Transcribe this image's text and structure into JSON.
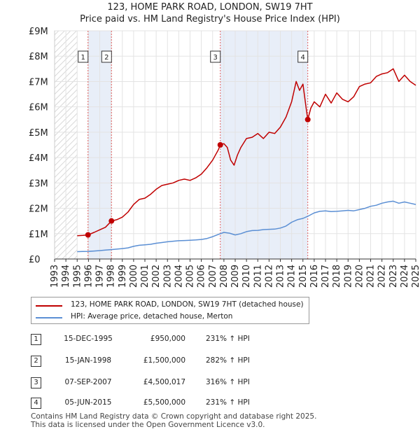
{
  "title": "123, HOME PARK ROAD, LONDON, SW19 7HT",
  "subtitle": "Price paid vs. HM Land Registry's House Price Index (HPI)",
  "colors": {
    "property": "#c00000",
    "hpi": "#5b8fd4",
    "shade": "#e8eef8",
    "hatch": "#cccccc",
    "marker_line": "#e06060"
  },
  "legend": [
    {
      "label": "123, HOME PARK ROAD, LONDON, SW19 7HT (detached house)",
      "color": "#c00000"
    },
    {
      "label": "HPI: Average price, detached house, Merton",
      "color": "#5b8fd4"
    }
  ],
  "transactions": [
    {
      "num": "1",
      "date": "15-DEC-1995",
      "price": "£950,000",
      "hpi": "231% ↑ HPI"
    },
    {
      "num": "2",
      "date": "15-JAN-1998",
      "price": "£1,500,000",
      "hpi": "282% ↑ HPI"
    },
    {
      "num": "3",
      "date": "07-SEP-2007",
      "price": "£4,500,017",
      "hpi": "316% ↑ HPI"
    },
    {
      "num": "4",
      "date": "05-JUN-2015",
      "price": "£5,500,000",
      "hpi": "231% ↑ HPI"
    }
  ],
  "footer": [
    "Contains HM Land Registry data © Crown copyright and database right 2025.",
    "This data is licensed under the Open Government Licence v3.0."
  ],
  "chart_data": {
    "type": "line",
    "xlim": [
      1993,
      2025
    ],
    "ylim": [
      0,
      9000000
    ],
    "x_ticks": [
      "1993",
      "1994",
      "1995",
      "1996",
      "1997",
      "1998",
      "1999",
      "2000",
      "2001",
      "2002",
      "2003",
      "2004",
      "2005",
      "2006",
      "2007",
      "2008",
      "2009",
      "2010",
      "2011",
      "2012",
      "2013",
      "2014",
      "2015",
      "2016",
      "2017",
      "2018",
      "2019",
      "2020",
      "2021",
      "2022",
      "2023",
      "2024",
      "2025"
    ],
    "y_ticks": [
      {
        "value": 0,
        "label": "£0"
      },
      {
        "value": 1000000,
        "label": "£1M"
      },
      {
        "value": 2000000,
        "label": "£2M"
      },
      {
        "value": 3000000,
        "label": "£3M"
      },
      {
        "value": 4000000,
        "label": "£4M"
      },
      {
        "value": 5000000,
        "label": "£5M"
      },
      {
        "value": 6000000,
        "label": "£6M"
      },
      {
        "value": 7000000,
        "label": "£7M"
      },
      {
        "value": 8000000,
        "label": "£8M"
      },
      {
        "value": 9000000,
        "label": "£9M"
      }
    ],
    "hatched_before": 1995.0,
    "shaded_spans": [
      [
        1995.96,
        1998.04
      ],
      [
        2007.68,
        2015.43
      ]
    ],
    "sales": [
      {
        "label": "1",
        "x": 1995.96,
        "y": 950000
      },
      {
        "label": "2",
        "x": 1998.04,
        "y": 1500000
      },
      {
        "label": "3",
        "x": 2007.68,
        "y": 4500017
      },
      {
        "label": "4",
        "x": 2015.43,
        "y": 5500000
      }
    ],
    "series": [
      {
        "name": "123, HOME PARK ROAD, LONDON, SW19 7HT (detached house)",
        "x": [
          1995.0,
          1995.5,
          1995.96,
          1996.5,
          1997.0,
          1997.5,
          1998.04,
          1998.5,
          1999.0,
          1999.5,
          2000.0,
          2000.5,
          2001.0,
          2001.5,
          2002.0,
          2002.5,
          2003.0,
          2003.5,
          2004.0,
          2004.5,
          2005.0,
          2005.5,
          2006.0,
          2006.5,
          2007.0,
          2007.5,
          2007.68,
          2008.0,
          2008.3,
          2008.6,
          2008.9,
          2009.2,
          2009.5,
          2010.0,
          2010.5,
          2011.0,
          2011.5,
          2012.0,
          2012.5,
          2013.0,
          2013.5,
          2014.0,
          2014.4,
          2014.7,
          2015.0,
          2015.3,
          2015.43,
          2015.7,
          2016.0,
          2016.5,
          2017.0,
          2017.5,
          2018.0,
          2018.5,
          2019.0,
          2019.5,
          2020.0,
          2020.5,
          2021.0,
          2021.5,
          2022.0,
          2022.5,
          2023.0,
          2023.5,
          2024.0,
          2024.5,
          2025.0
        ],
        "y": [
          920000,
          930000,
          950000,
          1050000,
          1150000,
          1250000,
          1500000,
          1550000,
          1650000,
          1850000,
          2150000,
          2350000,
          2400000,
          2550000,
          2750000,
          2900000,
          2950000,
          3000000,
          3100000,
          3150000,
          3100000,
          3200000,
          3350000,
          3600000,
          3900000,
          4300000,
          4500017,
          4550000,
          4400000,
          3900000,
          3700000,
          4100000,
          4400000,
          4750000,
          4800000,
          4950000,
          4750000,
          5000000,
          4950000,
          5200000,
          5600000,
          6200000,
          7000000,
          6650000,
          6900000,
          5900000,
          5500000,
          5950000,
          6200000,
          6000000,
          6500000,
          6150000,
          6550000,
          6300000,
          6200000,
          6400000,
          6800000,
          6900000,
          6950000,
          7200000,
          7300000,
          7350000,
          7500000,
          7000000,
          7250000,
          7000000,
          6850000
        ]
      },
      {
        "name": "HPI: Average price, detached house, Merton",
        "x": [
          1995.0,
          1995.5,
          1996.0,
          1996.5,
          1997.0,
          1997.5,
          1998.0,
          1998.5,
          1999.0,
          1999.5,
          2000.0,
          2000.5,
          2001.0,
          2001.5,
          2002.0,
          2002.5,
          2003.0,
          2003.5,
          2004.0,
          2004.5,
          2005.0,
          2005.5,
          2006.0,
          2006.5,
          2007.0,
          2007.5,
          2008.0,
          2008.5,
          2009.0,
          2009.5,
          2010.0,
          2010.5,
          2011.0,
          2011.5,
          2012.0,
          2012.5,
          2013.0,
          2013.5,
          2014.0,
          2014.5,
          2015.0,
          2015.5,
          2016.0,
          2016.5,
          2017.0,
          2017.5,
          2018.0,
          2018.5,
          2019.0,
          2019.5,
          2020.0,
          2020.5,
          2021.0,
          2021.5,
          2022.0,
          2022.5,
          2023.0,
          2023.5,
          2024.0,
          2024.5,
          2025.0
        ],
        "y": [
          290000,
          295000,
          300000,
          315000,
          330000,
          350000,
          370000,
          390000,
          410000,
          440000,
          500000,
          540000,
          560000,
          580000,
          620000,
          650000,
          680000,
          700000,
          720000,
          730000,
          740000,
          750000,
          770000,
          810000,
          880000,
          970000,
          1050000,
          1020000,
          950000,
          1000000,
          1080000,
          1120000,
          1130000,
          1160000,
          1170000,
          1180000,
          1220000,
          1300000,
          1450000,
          1550000,
          1600000,
          1700000,
          1820000,
          1880000,
          1900000,
          1870000,
          1880000,
          1900000,
          1920000,
          1900000,
          1950000,
          2000000,
          2080000,
          2120000,
          2200000,
          2250000,
          2280000,
          2200000,
          2250000,
          2200000,
          2150000
        ]
      }
    ]
  }
}
